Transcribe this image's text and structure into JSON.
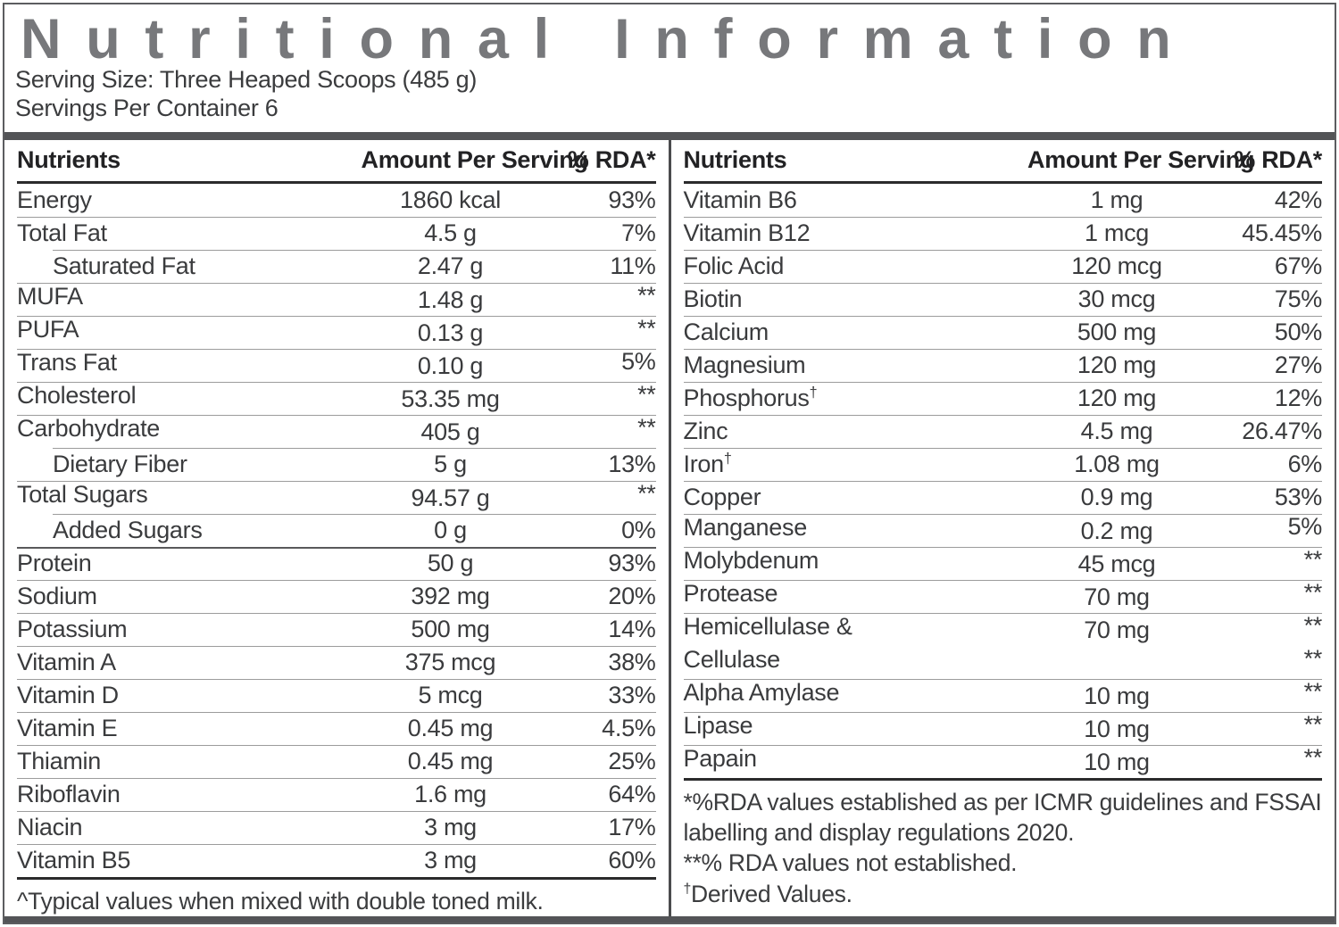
{
  "title": "Nutritional Information",
  "serving": {
    "size_line": "Serving Size: Three Heaped Scoops (485 g)",
    "count_line": "Servings Per Container 6"
  },
  "columns": {
    "nutrient": "Nutrients",
    "amount": "Amount Per Serving",
    "rda": "% RDA*"
  },
  "left_table": {
    "rows": [
      {
        "name": "Energy",
        "amount": "1860 kcal",
        "rda": "93%"
      },
      {
        "name": "Total Fat",
        "amount": "4.5 g",
        "rda": "7%"
      },
      {
        "name": "Saturated Fat",
        "amount": "2.47 g",
        "rda": "11%",
        "indent": true
      },
      {
        "name": "MUFA",
        "amount": "1.48 g",
        "rda": "**",
        "raised": true
      },
      {
        "name": "PUFA",
        "amount": "0.13 g",
        "rda": "**",
        "raised": true
      },
      {
        "name": "Trans Fat",
        "amount": "0.10 g",
        "rda": "5%",
        "raised": true
      },
      {
        "name": "Cholesterol",
        "amount": "53.35 mg",
        "rda": "**",
        "raised": true
      },
      {
        "name": "Carbohydrate",
        "amount": "405 g",
        "rda": "**",
        "raised": true
      },
      {
        "name": "Dietary Fiber",
        "amount": "5 g",
        "rda": "13%",
        "indent": true
      },
      {
        "name": "Total Sugars",
        "amount": "94.57 g",
        "rda": "**",
        "raised": true
      },
      {
        "name": "Added Sugars",
        "amount": "0 g",
        "rda": "0%",
        "indent": true
      },
      {
        "name": "Protein",
        "amount": "50 g",
        "rda": "93%",
        "thick_top": true
      },
      {
        "name": "Sodium",
        "amount": "392 mg",
        "rda": "20%"
      },
      {
        "name": "Potassium",
        "amount": "500 mg",
        "rda": "14%"
      },
      {
        "name": "Vitamin A",
        "amount": "375 mcg",
        "rda": "38%"
      },
      {
        "name": "Vitamin D",
        "amount": "5 mcg",
        "rda": "33%"
      },
      {
        "name": "Vitamin E",
        "amount": "0.45 mg",
        "rda": "4.5%"
      },
      {
        "name": "Thiamin",
        "amount": "0.45 mg",
        "rda": "25%"
      },
      {
        "name": "Riboflavin",
        "amount": "1.6 mg",
        "rda": "64%"
      },
      {
        "name": "Niacin",
        "amount": "3 mg",
        "rda": "17%"
      },
      {
        "name": "Vitamin B5",
        "amount": "3 mg",
        "rda": "60%"
      }
    ],
    "footnote": "^Typical values when mixed with double toned milk."
  },
  "right_table": {
    "rows": [
      {
        "name": "Vitamin B6",
        "amount": "1 mg",
        "rda": "42%"
      },
      {
        "name": "Vitamin B12",
        "amount": "1 mcg",
        "rda": "45.45%"
      },
      {
        "name": "Folic Acid",
        "amount": "120 mcg",
        "rda": "67%"
      },
      {
        "name": "Biotin",
        "amount": "30 mcg",
        "rda": "75%"
      },
      {
        "name": "Calcium",
        "amount": "500 mg",
        "rda": "50%"
      },
      {
        "name": "Magnesium",
        "amount": "120 mg",
        "rda": "27%"
      },
      {
        "name": "Phosphorus",
        "sup": "†",
        "amount": "120 mg",
        "rda": "12%"
      },
      {
        "name": "Zinc",
        "amount": "4.5 mg",
        "rda": "26.47%"
      },
      {
        "name": "Iron",
        "sup": "†",
        "amount": "1.08 mg",
        "rda": "6%"
      },
      {
        "name": "Copper",
        "amount": "0.9 mg",
        "rda": "53%"
      },
      {
        "name": "Manganese",
        "amount": "0.2 mg",
        "rda": "5%",
        "raised": true
      },
      {
        "name": "Molybdenum",
        "amount": "45 mcg",
        "rda": "**",
        "raised": true
      },
      {
        "name": "Protease",
        "amount": "70 mg",
        "rda": "**",
        "raised": true
      },
      {
        "name": "Hemicellulase &",
        "name2": "Cellulase",
        "amount": "70 mg",
        "rda": "**",
        "rda2": "**",
        "raised": true
      },
      {
        "name": "Alpha Amylase",
        "amount": "10 mg",
        "rda": "**",
        "raised": true
      },
      {
        "name": "Lipase",
        "amount": "10 mg",
        "rda": "**",
        "raised": true
      },
      {
        "name": "Papain",
        "amount": "10 mg",
        "rda": "**",
        "raised": true
      }
    ],
    "footnotes": [
      {
        "sup": "",
        "text": "*%RDA values established as per ICMR guidelines and FSSAI labelling and display regulations 2020."
      },
      {
        "sup": "",
        "text": "**% RDA values not established."
      },
      {
        "sup": "†",
        "text": "Derived Values."
      }
    ]
  },
  "colors": {
    "title_gray": "#77787b",
    "bar_gray": "#535457",
    "text_dark": "#3a3b3d",
    "thin_line": "#9c9c9c",
    "thick_line": "#2b2b2c"
  }
}
